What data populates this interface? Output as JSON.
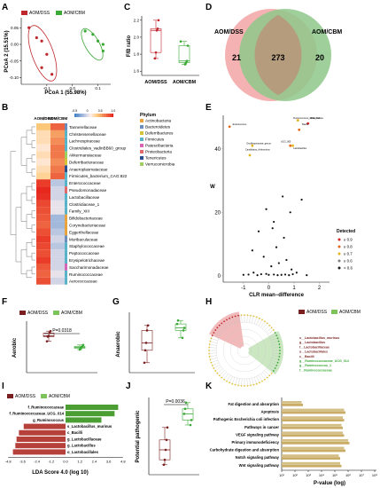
{
  "panels": {
    "A": {
      "label": "A",
      "legend": [
        "AOM/DSS",
        "AOM/CBM"
      ],
      "xlabel": "PCoA 1 (55.98%)",
      "ylabel": "PCoA 2 (15.51%)",
      "xticks": [
        "-0.1",
        "0.0",
        "0.1"
      ],
      "yticks": [
        "0.05",
        "0.00",
        "-0.05",
        "-0.10"
      ]
    },
    "C": {
      "label": "C",
      "ylabel": "F/B ratio",
      "categories": [
        "AOM/DSS",
        "AOM/CBM"
      ],
      "yticks": [
        "1.6",
        "1.8",
        "2.0",
        "2.2"
      ]
    },
    "D": {
      "label": "D",
      "left_name": "AOM/DSS",
      "right_name": "AOM/CBM",
      "left_only": "21",
      "shared": "273",
      "right_only": "20",
      "colors": {
        "left": "#f3a5a5",
        "right": "#8ec78a",
        "overlap": "#b59c7c"
      }
    },
    "B": {
      "label": "B",
      "columns": [
        "AOM/DSS",
        "AOM/CBM"
      ],
      "scale": [
        "-0.5",
        "0",
        "0.5",
        "1.0"
      ],
      "phylum_title": "Phylum",
      "phyla": [
        {
          "name": "Actinobacteria",
          "color": "#e8a33c"
        },
        {
          "name": "Bacteroidetes",
          "color": "#6c8ebf"
        },
        {
          "name": "Deferribacteres",
          "color": "#d3c23a"
        },
        {
          "name": "Firmicutes",
          "color": "#57b3c8"
        },
        {
          "name": "Patescibacteria",
          "color": "#d765b6"
        },
        {
          "name": "Proteobacteria",
          "color": "#e06a6a"
        },
        {
          "name": "Tenericutes",
          "color": "#2e4f8f"
        },
        {
          "name": "Verrucomicrobia",
          "color": "#9fcf5e"
        }
      ],
      "rows": [
        {
          "name": "Tannerellaceae",
          "v": [
            0.6,
            0.85
          ],
          "p": 1
        },
        {
          "name": "Christensenellaceae",
          "v": [
            0.5,
            0.7
          ],
          "p": 3
        },
        {
          "name": "Lachnospiraceae",
          "v": [
            0.5,
            0.75
          ],
          "p": 3
        },
        {
          "name": "Clostridiales_vadinBB60_group",
          "v": [
            0.45,
            0.8
          ],
          "p": 3
        },
        {
          "name": "Akkermansiaceae",
          "v": [
            0.5,
            0.8
          ],
          "p": 7
        },
        {
          "name": "Deferribacteraceae",
          "v": [
            0.45,
            0.75
          ],
          "p": 2
        },
        {
          "name": "Anaeroplasmataceae",
          "v": [
            0.5,
            0.8
          ],
          "p": 6
        },
        {
          "name": "Firmicutes_bacterium_CAG:822",
          "v": [
            0.55,
            0.85
          ],
          "p": 3
        },
        {
          "name": "Enterococcaceae",
          "v": [
            0.95,
            0.25
          ],
          "p": 3
        },
        {
          "name": "Pseudomonadaceae",
          "v": [
            1.0,
            0.3
          ],
          "p": 5
        },
        {
          "name": "Lactobacillaceae",
          "v": [
            0.98,
            0.3
          ],
          "p": 3
        },
        {
          "name": "Clostridiaceae_1",
          "v": [
            0.92,
            0.35
          ],
          "p": 3
        },
        {
          "name": "Family_XIII",
          "v": [
            0.9,
            0.35
          ],
          "p": 3
        },
        {
          "name": "Bifidobacteriaceae",
          "v": [
            0.88,
            0.2
          ],
          "p": 0
        },
        {
          "name": "Corynebacteriaceae",
          "v": [
            0.85,
            0.2
          ],
          "p": 0
        },
        {
          "name": "Eggerthellaceae",
          "v": [
            0.9,
            0.25
          ],
          "p": 0
        },
        {
          "name": "Muribaculaceae",
          "v": [
            0.95,
            0.3
          ],
          "p": 1
        },
        {
          "name": "Staphylococcaceae",
          "v": [
            0.92,
            0.25
          ],
          "p": 3
        },
        {
          "name": "Peptococcaceae",
          "v": [
            0.9,
            0.3
          ],
          "p": 3
        },
        {
          "name": "Erysipelotrichaceae",
          "v": [
            0.95,
            0.3
          ],
          "p": 3
        },
        {
          "name": "Saccharimonadaceae",
          "v": [
            0.88,
            0.3
          ],
          "p": 4
        },
        {
          "name": "Ruminococcaceae",
          "v": [
            0.85,
            0.35
          ],
          "p": 3
        },
        {
          "name": "Aerococcaceae",
          "v": [
            0.9,
            0.3
          ],
          "p": 3
        }
      ]
    },
    "E": {
      "label": "E",
      "xlabel": "CLR mean−difference",
      "ylabel": "W",
      "xticks": [
        "-1",
        "0",
        "1",
        "2"
      ],
      "yticks": [
        "0",
        "20",
        "40"
      ],
      "detected_title": "Detected",
      "detected_levels": [
        {
          "label": "≥ 0.9",
          "color": "#d62728"
        },
        {
          "label": "≥ 0.8",
          "color": "#e06a1a"
        },
        {
          "label": "≥ 0.7",
          "color": "#e3b51c"
        },
        {
          "label": "≥ 0.6",
          "color": "#7f7f7f"
        },
        {
          "label": "< 0.6",
          "color": "#222222"
        }
      ],
      "annotations": [
        "Enterococcus",
        "Ruminococcus_UCG_014",
        "Bacilli",
        "Akkermansia",
        "Oscillospiraceae_genus",
        "Candidatus_Arthromitus",
        "UCG_005",
        "Lactobacillus"
      ]
    },
    "F": {
      "label": "F",
      "legend": [
        "AOM/DSS",
        "AOM/CBM"
      ],
      "ylabel": "Aerobic",
      "pvalue": "P=0.0318"
    },
    "G": {
      "label": "G",
      "ylabel": "Anaerobic"
    },
    "H": {
      "label": "H",
      "legend": [
        "AOM/DSS",
        "AOM/CBM"
      ],
      "taxa": [
        "s__Lactobacillus_murinus",
        "g__Lactobacillus",
        "f__Lactobacillaceae",
        "o__Lactobacillales",
        "c__Bacilli",
        "g__Ruminococcaceae_UCG_014",
        "g__Ruminococcus_1",
        "f__Ruminococcaceae"
      ]
    },
    "I": {
      "label": "I",
      "legend": [
        "AOM/DSS",
        "AOM/CBM"
      ],
      "xlabel": "LDA Score 4.0 (log 10)",
      "xticks": [
        "-4.8",
        "-3.6",
        "-2.4",
        "-1.2",
        "0.0",
        "1.2",
        "2.4",
        "3.6",
        "4.8"
      ],
      "bars": [
        {
          "name": "f_Ruminococcaceae",
          "value": 4.4,
          "group": 1
        },
        {
          "name": "f_Ruminococcaceae_UCG_014",
          "value": 4.1,
          "group": 1
        },
        {
          "name": "g_Ruminococcus",
          "value": 3.0,
          "group": 1
        },
        {
          "name": "s_Lactobacillus_murinus",
          "value": -3.5,
          "group": 0
        },
        {
          "name": "c_Bacilli",
          "value": -3.9,
          "group": 0
        },
        {
          "name": "g_Lactobacillaceae",
          "value": -4.1,
          "group": 0
        },
        {
          "name": "g_Lactobacillus",
          "value": -4.2,
          "group": 0
        },
        {
          "name": "o_Lactobacillales",
          "value": -4.4,
          "group": 0
        }
      ]
    },
    "J": {
      "label": "J",
      "ylabel": "Potential pathogenic",
      "pvalue": "P=0.0036"
    },
    "K": {
      "label": "K",
      "xlabel": "P-value (log)",
      "xticks": [
        "10¹",
        "10²",
        "10³",
        "10⁴",
        "10⁵",
        "10⁶",
        "10⁷",
        "10⁸"
      ],
      "pathways": [
        {
          "name": "Fat digestion and absorption",
          "a": 2.5,
          "b": 2.6
        },
        {
          "name": "Apoptosis",
          "a": 5.7,
          "b": 5.8
        },
        {
          "name": "Pathogenic Escherichia coli infection",
          "a": 5.6,
          "b": 5.7
        },
        {
          "name": "Pathways in cancer",
          "a": 5.5,
          "b": 5.6
        },
        {
          "name": "VEGF signaling pathway",
          "a": 5.6,
          "b": 5.7
        },
        {
          "name": "Primary immunodeficiency",
          "a": 6.0,
          "b": 6.1
        },
        {
          "name": "Carbohydrate digestion and absorption",
          "a": 5.7,
          "b": 5.8
        },
        {
          "name": "Notch signaling pathway",
          "a": 5.3,
          "b": 5.4
        },
        {
          "name": "Wnt signaling pathway",
          "a": 5.4,
          "b": 5.5
        }
      ]
    }
  },
  "colors": {
    "dss": "#c0272d",
    "cbm": "#3aa935",
    "dss_dark": "#7a1f1f",
    "cbm_light": "#7cc35a",
    "dss_bar": "#b6403a",
    "cbm_bar": "#4a9e32"
  },
  "chart_data": [
    {
      "type": "scatter",
      "title": "",
      "xlabel": "PCoA 1 (55.98%)",
      "ylabel": "PCoA 2 (15.51%)",
      "series": [
        {
          "name": "AOM/DSS",
          "x": [
            -0.17,
            -0.14,
            -0.12,
            -0.1,
            -0.12,
            -0.08
          ],
          "y": [
            0.05,
            0.02,
            0.01,
            -0.03,
            -0.07,
            -0.09
          ]
        },
        {
          "name": "AOM/CBM",
          "x": [
            0.05,
            0.08,
            0.1,
            0.12,
            0.12
          ],
          "y": [
            0.04,
            0.03,
            0.01,
            0.0,
            -0.02
          ]
        }
      ]
    },
    {
      "type": "box",
      "ylabel": "F/B ratio",
      "categories": [
        "AOM/DSS",
        "AOM/CBM"
      ],
      "series": [
        {
          "name": "AOM/DSS",
          "values": [
            1.75,
            1.82,
            2.08,
            2.1,
            2.2
          ]
        },
        {
          "name": "AOM/CBM",
          "values": [
            1.68,
            1.7,
            1.72,
            1.9,
            1.95
          ]
        }
      ],
      "ylim": [
        1.6,
        2.2
      ]
    },
    {
      "type": "bar",
      "xlabel": "LDA Score 4.0 (log 10)",
      "categories": [
        "f_Ruminococcaceae",
        "f_Ruminococcaceae_UCG_014",
        "g_Ruminococcus",
        "s_Lactobacillus_murinus",
        "c_Bacilli",
        "g_Lactobacillaceae",
        "g_Lactobacillus",
        "o_Lactobacillales"
      ],
      "values": [
        4.4,
        4.1,
        3.0,
        -3.5,
        -3.9,
        -4.1,
        -4.2,
        -4.4
      ]
    }
  ]
}
